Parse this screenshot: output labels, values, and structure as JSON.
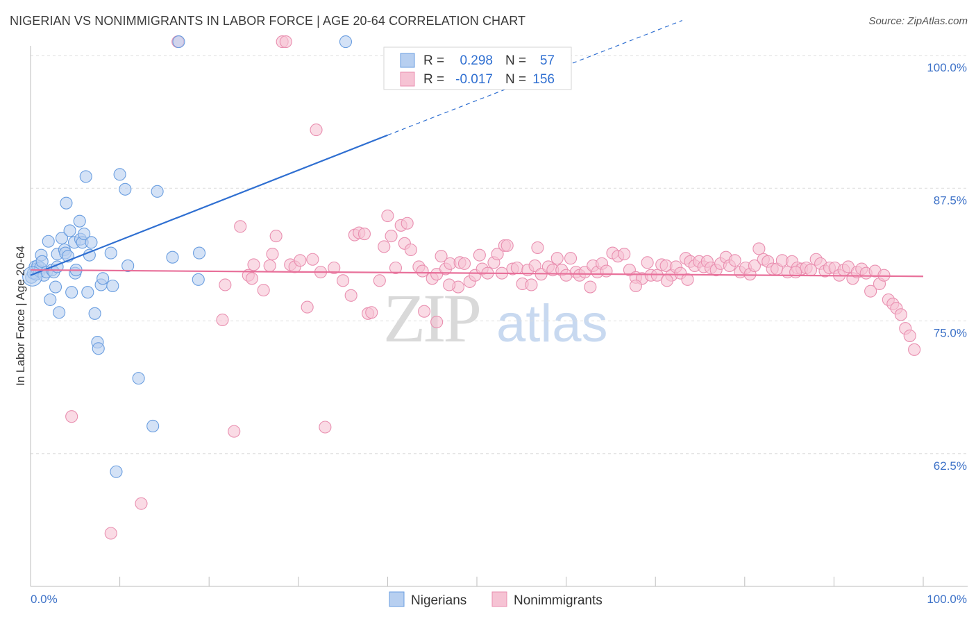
{
  "title": "NIGERIAN VS NONIMMIGRANTS IN LABOR FORCE | AGE 20-64 CORRELATION CHART",
  "source": "Source: ZipAtlas.com",
  "watermark": {
    "zip": "ZIP",
    "atlas": "atlas"
  },
  "chart_data": {
    "type": "scatter",
    "ylabel": "In Labor Force | Age 20-64",
    "xlim": [
      0,
      100
    ],
    "ylim": [
      50,
      102
    ],
    "x_tick_labels": [
      {
        "value": 0,
        "label": "0.0%"
      },
      {
        "value": 100,
        "label": "100.0%"
      }
    ],
    "y_tick_labels": [
      {
        "value": 100,
        "label": "100.0%"
      },
      {
        "value": 87.5,
        "label": "87.5%"
      },
      {
        "value": 75,
        "label": "75.0%"
      },
      {
        "value": 62.5,
        "label": "62.5%"
      }
    ],
    "legend": [
      {
        "name": "Nigerians",
        "r_label": "R =",
        "r": "0.298",
        "n_label": "N =",
        "n": "57"
      },
      {
        "name": "Nonimmigrants",
        "r_label": "R =",
        "r": "-0.017",
        "n_label": "N =",
        "n": "156"
      }
    ],
    "series": [
      {
        "name": "Nigerians",
        "color": "#6a9ee0",
        "fill": "#b7cff0",
        "trend": {
          "x0": 0,
          "y0": 79.3,
          "x1": 40,
          "y1": 92.5,
          "dash_to_x": 73,
          "dash_to_y": 103.3,
          "color": "#2f6fd1"
        },
        "points": [
          [
            0.1,
            79.1
          ],
          [
            0.3,
            79.5
          ],
          [
            0.5,
            80.1
          ],
          [
            0.6,
            79.4
          ],
          [
            0.7,
            79.9
          ],
          [
            0.8,
            80.2
          ],
          [
            1.0,
            79.7
          ],
          [
            1.1,
            80.0
          ],
          [
            1.2,
            81.2
          ],
          [
            1.3,
            80.6
          ],
          [
            1.5,
            79.3
          ],
          [
            1.8,
            79.6
          ],
          [
            2.0,
            82.5
          ],
          [
            2.2,
            77.0
          ],
          [
            2.4,
            79.8
          ],
          [
            2.6,
            79.6
          ],
          [
            2.8,
            78.2
          ],
          [
            3.0,
            81.3
          ],
          [
            3.2,
            75.8
          ],
          [
            3.5,
            82.8
          ],
          [
            3.8,
            81.7
          ],
          [
            3.9,
            81.4
          ],
          [
            4.0,
            86.1
          ],
          [
            4.2,
            81.1
          ],
          [
            4.4,
            83.5
          ],
          [
            4.6,
            77.7
          ],
          [
            4.9,
            82.4
          ],
          [
            5.0,
            79.5
          ],
          [
            5.1,
            79.8
          ],
          [
            5.5,
            84.4
          ],
          [
            5.6,
            82.7
          ],
          [
            5.8,
            82.4
          ],
          [
            6.0,
            83.2
          ],
          [
            6.2,
            88.6
          ],
          [
            6.4,
            77.7
          ],
          [
            6.6,
            81.2
          ],
          [
            6.8,
            82.4
          ],
          [
            7.2,
            75.7
          ],
          [
            7.5,
            73.0
          ],
          [
            7.6,
            72.4
          ],
          [
            7.9,
            78.4
          ],
          [
            8.1,
            79.0
          ],
          [
            9.0,
            81.4
          ],
          [
            9.2,
            78.3
          ],
          [
            10.0,
            88.8
          ],
          [
            10.6,
            87.4
          ],
          [
            10.9,
            80.2
          ],
          [
            12.1,
            69.6
          ],
          [
            13.7,
            65.1
          ],
          [
            14.2,
            87.2
          ],
          [
            15.9,
            81.0
          ],
          [
            16.6,
            101.3
          ],
          [
            18.8,
            78.9
          ],
          [
            18.9,
            81.4
          ],
          [
            9.6,
            60.8
          ],
          [
            35.3,
            101.3
          ],
          [
            3.0,
            80.1
          ]
        ]
      },
      {
        "name": "Nonimmigrants",
        "color": "#e98fb0",
        "fill": "#f6c3d4",
        "trend": {
          "x0": 0,
          "y0": 79.8,
          "x1": 100,
          "y1": 79.2,
          "color": "#e8709a"
        },
        "points": [
          [
            4.6,
            66.0
          ],
          [
            9.0,
            55.0
          ],
          [
            12.4,
            57.8
          ],
          [
            16.5,
            101.3
          ],
          [
            21.5,
            75.1
          ],
          [
            21.8,
            78.4
          ],
          [
            22.8,
            64.6
          ],
          [
            23.5,
            83.9
          ],
          [
            24.4,
            79.3
          ],
          [
            24.8,
            79.0
          ],
          [
            25.0,
            80.3
          ],
          [
            26.1,
            77.9
          ],
          [
            26.8,
            80.2
          ],
          [
            27.1,
            81.3
          ],
          [
            27.5,
            83.0
          ],
          [
            28.2,
            101.3
          ],
          [
            28.6,
            101.3
          ],
          [
            29.1,
            80.3
          ],
          [
            29.6,
            80.1
          ],
          [
            30.2,
            80.7
          ],
          [
            31.0,
            76.3
          ],
          [
            31.6,
            80.8
          ],
          [
            32.0,
            93.0
          ],
          [
            32.5,
            79.6
          ],
          [
            33.0,
            65.0
          ],
          [
            34.0,
            80.0
          ],
          [
            35.0,
            78.8
          ],
          [
            35.9,
            77.4
          ],
          [
            36.3,
            83.1
          ],
          [
            36.8,
            83.3
          ],
          [
            37.4,
            83.2
          ],
          [
            37.8,
            75.7
          ],
          [
            38.2,
            75.8
          ],
          [
            39.1,
            78.8
          ],
          [
            39.6,
            82.0
          ],
          [
            40.0,
            84.9
          ],
          [
            40.4,
            83.0
          ],
          [
            40.9,
            80.0
          ],
          [
            41.5,
            84.0
          ],
          [
            41.9,
            82.3
          ],
          [
            42.2,
            84.2
          ],
          [
            42.6,
            81.7
          ],
          [
            43.5,
            80.1
          ],
          [
            43.9,
            79.7
          ],
          [
            44.1,
            75.9
          ],
          [
            45.0,
            79.0
          ],
          [
            45.5,
            79.4
          ],
          [
            46.0,
            81.1
          ],
          [
            46.5,
            79.9
          ],
          [
            47.0,
            80.4
          ],
          [
            47.9,
            78.2
          ],
          [
            48.1,
            80.5
          ],
          [
            48.6,
            80.4
          ],
          [
            49.2,
            78.7
          ],
          [
            49.8,
            79.3
          ],
          [
            50.3,
            81.2
          ],
          [
            50.6,
            79.9
          ],
          [
            51.2,
            79.5
          ],
          [
            51.9,
            80.5
          ],
          [
            52.3,
            81.3
          ],
          [
            52.8,
            79.5
          ],
          [
            53.1,
            82.1
          ],
          [
            53.4,
            82.1
          ],
          [
            54.0,
            79.9
          ],
          [
            54.5,
            80.0
          ],
          [
            55.1,
            78.5
          ],
          [
            55.7,
            79.8
          ],
          [
            56.1,
            78.4
          ],
          [
            56.5,
            80.2
          ],
          [
            57.2,
            79.4
          ],
          [
            58.0,
            80.1
          ],
          [
            58.5,
            79.8
          ],
          [
            59.0,
            80.9
          ],
          [
            59.5,
            79.8
          ],
          [
            60.0,
            79.3
          ],
          [
            60.5,
            80.9
          ],
          [
            61.1,
            79.6
          ],
          [
            61.5,
            79.3
          ],
          [
            62.1,
            79.6
          ],
          [
            62.7,
            78.2
          ],
          [
            63.0,
            80.2
          ],
          [
            63.5,
            79.6
          ],
          [
            64.0,
            80.4
          ],
          [
            64.5,
            79.7
          ],
          [
            65.2,
            81.4
          ],
          [
            65.8,
            81.1
          ],
          [
            66.5,
            81.3
          ],
          [
            67.1,
            79.8
          ],
          [
            67.8,
            79.1
          ],
          [
            68.5,
            79.0
          ],
          [
            69.1,
            80.5
          ],
          [
            69.5,
            79.3
          ],
          [
            70.2,
            79.3
          ],
          [
            70.7,
            80.3
          ],
          [
            71.2,
            80.2
          ],
          [
            71.8,
            79.3
          ],
          [
            72.3,
            80.1
          ],
          [
            72.8,
            79.5
          ],
          [
            73.4,
            80.9
          ],
          [
            73.9,
            80.6
          ],
          [
            74.4,
            80.2
          ],
          [
            74.9,
            80.6
          ],
          [
            75.4,
            80.1
          ],
          [
            75.8,
            80.6
          ],
          [
            76.2,
            80.0
          ],
          [
            76.8,
            79.8
          ],
          [
            77.3,
            80.4
          ],
          [
            77.9,
            81.0
          ],
          [
            78.3,
            80.2
          ],
          [
            78.9,
            80.7
          ],
          [
            79.5,
            79.6
          ],
          [
            80.1,
            80.0
          ],
          [
            80.6,
            79.4
          ],
          [
            81.1,
            80.2
          ],
          [
            81.6,
            81.8
          ],
          [
            82.1,
            80.8
          ],
          [
            82.6,
            80.6
          ],
          [
            83.1,
            79.9
          ],
          [
            83.6,
            79.9
          ],
          [
            84.2,
            80.7
          ],
          [
            84.8,
            79.6
          ],
          [
            85.3,
            80.6
          ],
          [
            85.9,
            80.0
          ],
          [
            86.4,
            79.9
          ],
          [
            86.9,
            80.0
          ],
          [
            87.4,
            79.8
          ],
          [
            88.0,
            80.8
          ],
          [
            88.5,
            80.4
          ],
          [
            89.0,
            79.7
          ],
          [
            89.5,
            80.0
          ],
          [
            90.1,
            80.0
          ],
          [
            90.6,
            79.3
          ],
          [
            91.1,
            79.8
          ],
          [
            91.6,
            80.1
          ],
          [
            92.1,
            79.0
          ],
          [
            92.6,
            79.6
          ],
          [
            93.1,
            79.9
          ],
          [
            93.6,
            79.5
          ],
          [
            94.1,
            77.8
          ],
          [
            94.6,
            79.7
          ],
          [
            95.1,
            78.5
          ],
          [
            95.6,
            79.3
          ],
          [
            96.1,
            77.0
          ],
          [
            96.6,
            76.6
          ],
          [
            97.0,
            76.2
          ],
          [
            97.5,
            75.6
          ],
          [
            98.0,
            74.3
          ],
          [
            98.5,
            73.6
          ],
          [
            99.0,
            72.3
          ],
          [
            45.5,
            74.9
          ],
          [
            67.8,
            78.3
          ],
          [
            71.3,
            78.8
          ],
          [
            73.6,
            78.9
          ],
          [
            56.8,
            81.9
          ],
          [
            46.9,
            78.4
          ],
          [
            85.7,
            79.6
          ]
        ]
      }
    ]
  }
}
